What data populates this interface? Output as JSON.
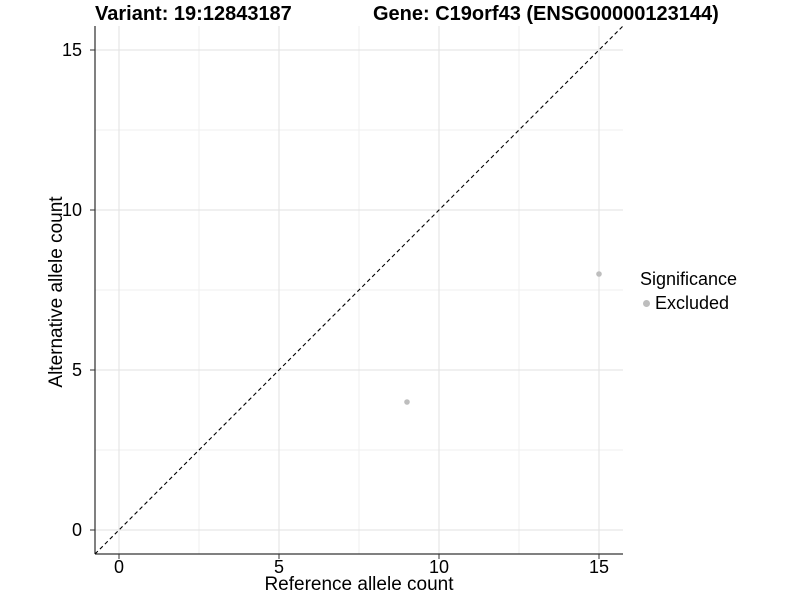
{
  "titles": {
    "variant": "Variant: 19:12843187",
    "gene": "Gene: C19orf43 (ENSG00000123144)"
  },
  "legend": {
    "title": "Significance",
    "items": [
      {
        "label": "Excluded",
        "color": "#bebebe"
      }
    ]
  },
  "chart_data": {
    "type": "scatter",
    "title_left": "Variant: 19:12843187",
    "title_right": "Gene: C19orf43 (ENSG00000123144)",
    "xlabel": "Reference allele count",
    "ylabel": "Alternative allele count",
    "xlim": [
      -0.75,
      15.75
    ],
    "ylim": [
      -0.75,
      15.75
    ],
    "x_ticks": [
      0,
      5,
      10,
      15
    ],
    "y_ticks": [
      0,
      5,
      10,
      15
    ],
    "minor_gridlines": [
      2.5,
      7.5,
      12.5
    ],
    "grid": true,
    "legend_position": "right-middle",
    "series": [
      {
        "name": "Excluded",
        "color": "#bebebe",
        "points": [
          {
            "x": 9,
            "y": 4
          },
          {
            "x": 15,
            "y": 8
          }
        ]
      }
    ],
    "reference_line": {
      "type": "identity y=x",
      "style": "dashed",
      "color": "#000000",
      "span": [
        -0.75,
        15.75
      ]
    }
  },
  "colors": {
    "major_grid": "#e2e2e2",
    "minor_grid": "#efefef",
    "axis_line": "#000000",
    "tick_mark": "#333333",
    "tick_text": "#000000",
    "point": "#bebebe"
  }
}
